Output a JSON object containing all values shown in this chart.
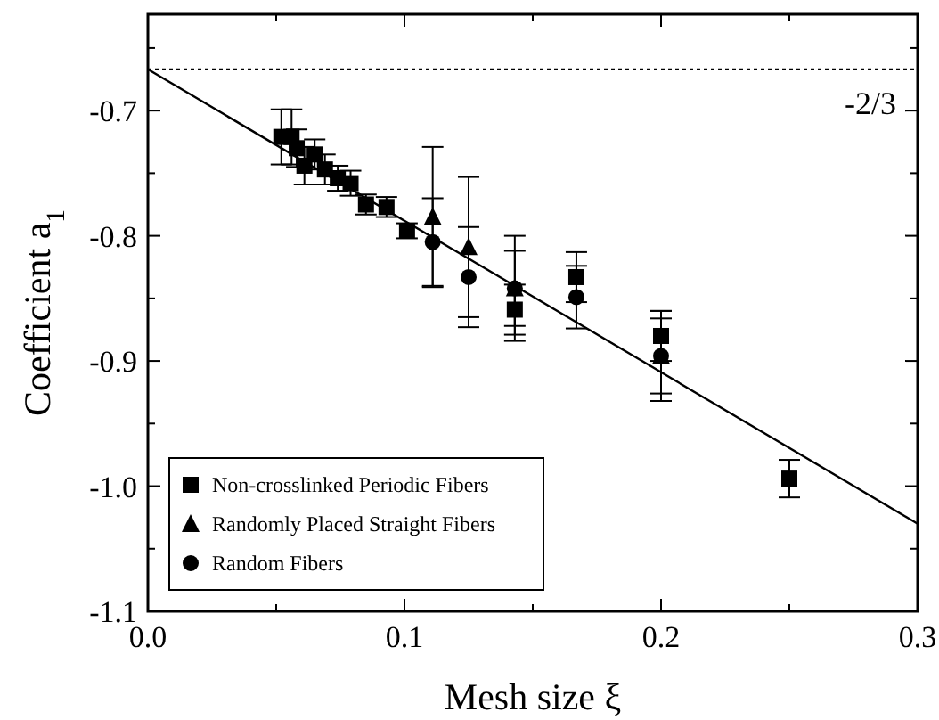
{
  "chart_data": {
    "type": "scatter",
    "xlabel": "Mesh size ξ",
    "ylabel": "Coefficient a$_{1}$",
    "xlim": [
      0,
      0.3
    ],
    "ylim": [
      -1.1,
      -0.623
    ],
    "xticks": [
      {
        "value": 0,
        "label": "0.0"
      },
      {
        "value": 0.05,
        "label": null
      },
      0.1,
      {
        "value": 0.15,
        "label": null
      },
      0.2,
      {
        "value": 0.25,
        "label": null
      },
      0.3
    ],
    "yticks": [
      {
        "value": -1.1,
        "label": "-1.1"
      },
      {
        "value": -1.05,
        "label": null
      },
      {
        "value": -1.0,
        "label": "-1.0"
      },
      {
        "value": -0.95,
        "label": null
      },
      -0.9,
      {
        "value": -0.85,
        "label": null
      },
      -0.8,
      {
        "value": -0.75,
        "label": null
      },
      -0.7,
      {
        "value": -0.65,
        "label": null
      }
    ],
    "grid": false,
    "legend": "bottom left",
    "ref_lines": [
      {
        "axis": "y",
        "value": -0.667,
        "line_style": "dotted",
        "color": "#000000"
      }
    ],
    "annotations": [
      "-2/3"
    ],
    "series": [
      {
        "name": "Non-crosslinked Periodic Fibers",
        "marker": "square",
        "color": "#000000",
        "x": [
          0.052,
          0.056,
          0.058,
          0.061,
          0.065,
          0.069,
          0.074,
          0.079,
          0.085,
          0.093,
          0.101,
          0.143,
          0.167,
          0.2,
          0.25
        ],
        "values": [
          -0.721,
          -0.721,
          -0.73,
          -0.744,
          -0.735,
          -0.747,
          -0.754,
          -0.758,
          -0.775,
          -0.777,
          -0.796,
          -0.859,
          -0.833,
          -0.88,
          -0.994
        ],
        "errors": [
          0.022,
          0.022,
          0.015,
          0.015,
          0.012,
          0.012,
          0.01,
          0.01,
          0.008,
          0.008,
          0.006,
          0.02,
          0.02,
          0.02,
          0.015
        ]
      },
      {
        "name": "Randomly Placed Straight Fibers",
        "marker": "triangle",
        "color": "#000000",
        "x": [
          0.111,
          0.125,
          0.143,
          0.2
        ],
        "values": [
          -0.785,
          -0.809,
          -0.842,
          -0.896
        ],
        "errors": [
          0.056,
          0.056,
          0.042,
          0.036
        ]
      },
      {
        "name": "Random Fibers",
        "marker": "circle",
        "color": "#000000",
        "x": [
          0.111,
          0.125,
          0.143,
          0.167,
          0.2
        ],
        "values": [
          -0.805,
          -0.833,
          -0.842,
          -0.849,
          -0.896
        ],
        "errors": [
          0.035,
          0.04,
          0.03,
          0.025,
          0.03
        ]
      },
      {
        "type": "line",
        "marker": "none",
        "line_style": "solid",
        "color": "#000000",
        "x": [
          0,
          0.3
        ],
        "values": [
          -0.667,
          -1.03
        ]
      }
    ]
  }
}
